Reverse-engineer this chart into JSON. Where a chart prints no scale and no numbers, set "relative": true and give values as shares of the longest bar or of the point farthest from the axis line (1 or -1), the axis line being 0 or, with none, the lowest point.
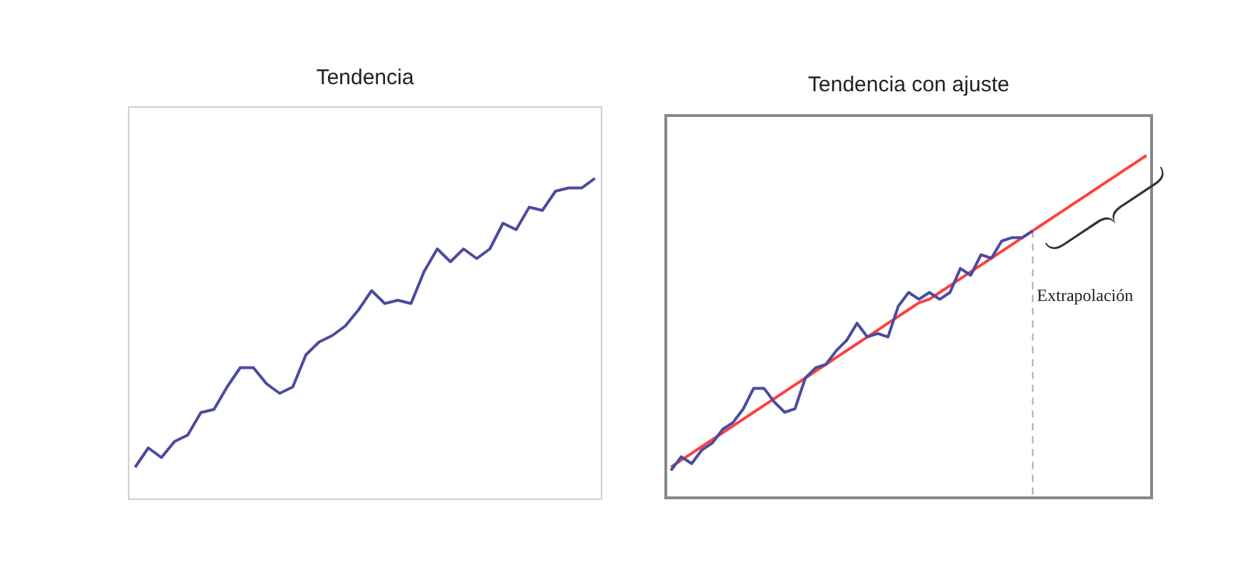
{
  "chart_data": [
    {
      "type": "line",
      "title": "Tendencia",
      "relative": true,
      "marker": "none",
      "categories": [
        null,
        null,
        null,
        null,
        null,
        null,
        null,
        null,
        null,
        null,
        null,
        null,
        null,
        null,
        null,
        null,
        null,
        null,
        null,
        null,
        null,
        null,
        null,
        null,
        null,
        null,
        null,
        null,
        null,
        null,
        null,
        null,
        null,
        null,
        null,
        null
      ],
      "series": [
        {
          "color": "#4b4ba0",
          "values": [
            0.1,
            0.16,
            0.13,
            0.18,
            0.2,
            0.27,
            0.28,
            0.35,
            0.41,
            0.41,
            0.36,
            0.33,
            0.35,
            0.45,
            0.49,
            0.51,
            0.54,
            0.59,
            0.65,
            0.61,
            0.62,
            0.61,
            0.71,
            0.78,
            0.74,
            0.78,
            0.75,
            0.78,
            0.86,
            0.84,
            0.91,
            0.9,
            0.96,
            0.97,
            0.97,
            1
          ]
        }
      ]
    },
    {
      "type": "line",
      "title": "Tendencia con ajuste",
      "relative": true,
      "marker": "none",
      "categories": [
        null,
        null,
        null,
        null,
        null,
        null,
        null,
        null,
        null,
        null,
        null,
        null,
        null,
        null,
        null,
        null,
        null,
        null,
        null,
        null,
        null,
        null,
        null,
        null,
        null,
        null,
        null,
        null,
        null,
        null,
        null,
        null,
        null,
        null,
        null,
        null,
        null,
        null,
        null,
        null,
        null,
        null,
        null,
        null,
        null,
        null,
        null
      ],
      "series": [
        {
          "color": "#4b4ba0",
          "values": [
            0.08,
            0.12,
            0.1,
            0.14,
            0.16,
            0.2,
            0.22,
            0.26,
            0.32,
            0.32,
            0.28,
            0.25,
            0.26,
            0.35,
            0.38,
            0.39,
            0.43,
            0.46,
            0.51,
            0.47,
            0.48,
            0.47,
            0.56,
            0.6,
            0.58,
            0.6,
            0.58,
            0.6,
            0.67,
            0.65,
            0.71,
            0.7,
            0.75,
            0.76,
            0.76,
            0.78,
            null,
            null,
            null,
            null,
            null,
            null,
            null,
            null,
            null,
            null,
            null
          ]
        },
        {
          "color": "#ff4040",
          "values": [
            0.09,
            0.11,
            0.13,
            0.15,
            0.17,
            0.19,
            0.21,
            0.23,
            0.25,
            0.27,
            0.29,
            0.31,
            0.33,
            0.35,
            0.37,
            0.39,
            0.41,
            0.43,
            0.45,
            0.47,
            0.49,
            0.51,
            0.53,
            0.55,
            0.57,
            0.58,
            0.6,
            0.62,
            0.64,
            0.66,
            0.68,
            0.7,
            0.72,
            0.74,
            0.76,
            0.78,
            0.8,
            0.82,
            0.84,
            0.86,
            0.88,
            0.9,
            0.92,
            0.94,
            0.96,
            0.98,
            1
          ]
        }
      ],
      "annotations": [
        "Extrapolación"
      ]
    }
  ]
}
